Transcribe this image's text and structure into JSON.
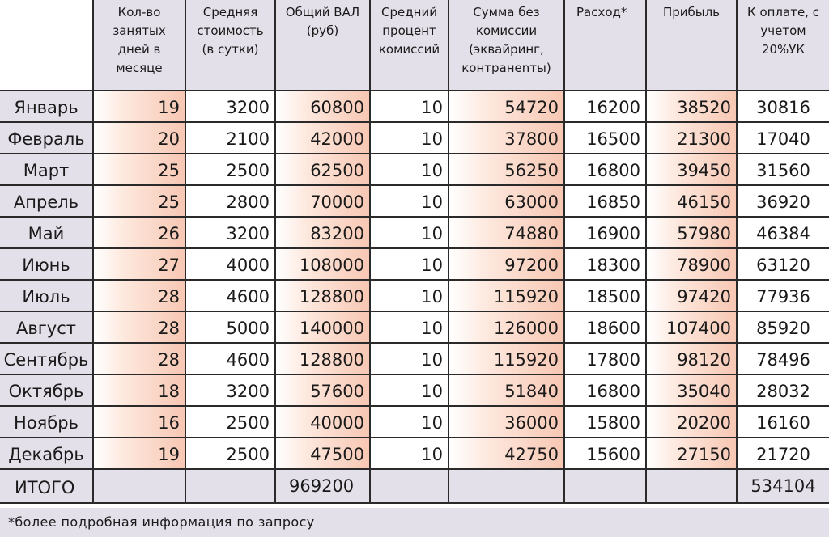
{
  "headers": {
    "days": "Кол-во занятых дней в месяце",
    "avg_price": "Средняя стоимость (в сутки)",
    "total_gross": "Общий ВАЛ (руб)",
    "avg_commission": "Средний процент комиссий",
    "net_sum": "Сумма без комиссии (эквайринг, контранenты)",
    "expense": "Расход*",
    "profit": "Прибыль",
    "payout": "К оплате, с учетом 20%УК"
  },
  "rows": [
    {
      "month": "Январь",
      "days": "19",
      "avg_price": "3200",
      "gross": "60800",
      "commission": "10",
      "net": "54720",
      "expense": "16200",
      "profit": "38520",
      "payout": "30816"
    },
    {
      "month": "Февраль",
      "days": "20",
      "avg_price": "2100",
      "gross": "42000",
      "commission": "10",
      "net": "37800",
      "expense": "16500",
      "profit": "21300",
      "payout": "17040"
    },
    {
      "month": "Март",
      "days": "25",
      "avg_price": "2500",
      "gross": "62500",
      "commission": "10",
      "net": "56250",
      "expense": "16800",
      "profit": "39450",
      "payout": "31560"
    },
    {
      "month": "Апрель",
      "days": "25",
      "avg_price": "2800",
      "gross": "70000",
      "commission": "10",
      "net": "63000",
      "expense": "16850",
      "profit": "46150",
      "payout": "36920"
    },
    {
      "month": "Май",
      "days": "26",
      "avg_price": "3200",
      "gross": "83200",
      "commission": "10",
      "net": "74880",
      "expense": "16900",
      "profit": "57980",
      "payout": "46384"
    },
    {
      "month": "Июнь",
      "days": "27",
      "avg_price": "4000",
      "gross": "108000",
      "commission": "10",
      "net": "97200",
      "expense": "18300",
      "profit": "78900",
      "payout": "63120"
    },
    {
      "month": "Июль",
      "days": "28",
      "avg_price": "4600",
      "gross": "128800",
      "commission": "10",
      "net": "115920",
      "expense": "18500",
      "profit": "97420",
      "payout": "77936"
    },
    {
      "month": "Август",
      "days": "28",
      "avg_price": "5000",
      "gross": "140000",
      "commission": "10",
      "net": "126000",
      "expense": "18600",
      "profit": "107400",
      "payout": "85920"
    },
    {
      "month": "Сентябрь",
      "days": "28",
      "avg_price": "4600",
      "gross": "128800",
      "commission": "10",
      "net": "115920",
      "expense": "17800",
      "profit": "98120",
      "payout": "78496"
    },
    {
      "month": "Октябрь",
      "days": "18",
      "avg_price": "3200",
      "gross": "57600",
      "commission": "10",
      "net": "51840",
      "expense": "16800",
      "profit": "35040",
      "payout": "28032"
    },
    {
      "month": "Ноябрь",
      "days": "16",
      "avg_price": "2500",
      "gross": "40000",
      "commission": "10",
      "net": "36000",
      "expense": "15800",
      "profit": "20200",
      "payout": "16160"
    },
    {
      "month": "Декабрь",
      "days": "19",
      "avg_price": "2500",
      "gross": "47500",
      "commission": "10",
      "net": "42750",
      "expense": "15600",
      "profit": "27150",
      "payout": "21720"
    }
  ],
  "total": {
    "label": "ИТОГО",
    "gross": "969200",
    "payout": "534104"
  },
  "footnote": "*более подробная информация по запросу",
  "colors": {
    "header_bg": "#e3e0ea",
    "peach_accent": "#f7c7b3",
    "border": "#2a2a2a"
  }
}
